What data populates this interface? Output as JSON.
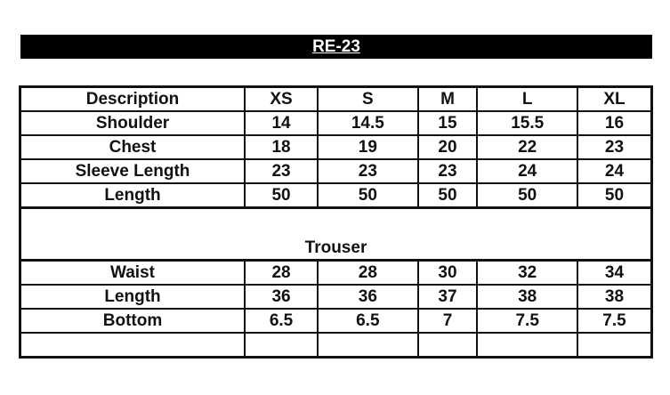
{
  "title": "RE-23",
  "header": [
    "Description",
    "XS",
    "S",
    "M",
    "L",
    "XL"
  ],
  "top_rows": [
    [
      "Shoulder",
      "14",
      "14.5",
      "15",
      "15.5",
      "16"
    ],
    [
      "Chest",
      "18",
      "19",
      "20",
      "22",
      "23"
    ],
    [
      "Sleeve Length",
      "23",
      "23",
      "23",
      "24",
      "24"
    ],
    [
      "Length",
      "50",
      "50",
      "50",
      "50",
      "50"
    ]
  ],
  "section_title": "Trouser",
  "bottom_rows": [
    [
      "Waist",
      "28",
      "28",
      "30",
      "32",
      "34"
    ],
    [
      "Length",
      "36",
      "36",
      "37",
      "38",
      "38"
    ],
    [
      "Bottom",
      "6.5",
      "6.5",
      "7",
      "7.5",
      "7.5"
    ],
    [
      "",
      "",
      "",
      "",
      "",
      ""
    ]
  ]
}
